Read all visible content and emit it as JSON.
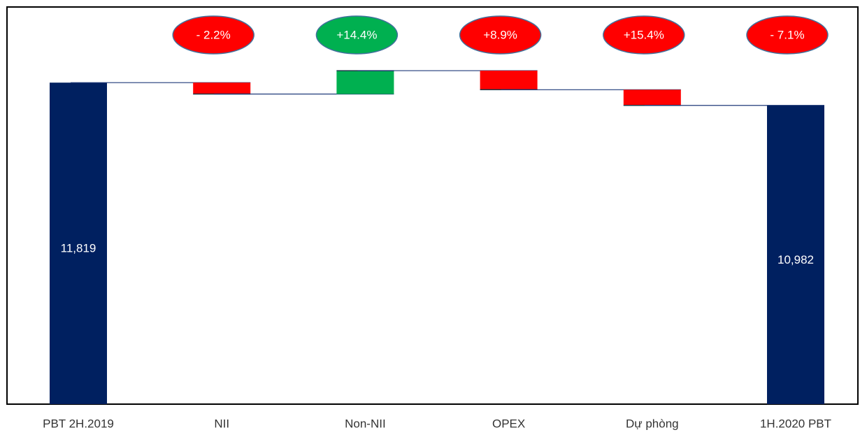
{
  "chart_data": {
    "type": "waterfall",
    "categories": [
      "PBT 2H.2019",
      "NII",
      "Non-NII",
      "OPEX",
      "Dự phòng",
      "1H.2020 PBT"
    ],
    "measure": [
      "absolute",
      "relative",
      "relative",
      "relative",
      "relative",
      "absolute"
    ],
    "values": [
      11819,
      -420,
      860,
      -700,
      -577,
      10982
    ],
    "value_labels": [
      "11,819",
      null,
      null,
      null,
      null,
      "10,982"
    ],
    "colors": [
      "#002060",
      "#ff0000",
      "#00b050",
      "#ff0000",
      "#ff0000",
      "#002060"
    ],
    "change_labels": [
      null,
      "- 2.2%",
      "+14.4%",
      "+8.9%",
      "+15.4%",
      "- 7.1%"
    ],
    "change_colors": [
      null,
      "#ff0000",
      "#00b050",
      "#ff0000",
      "#ff0000",
      "#ff0000"
    ],
    "ylim": [
      0,
      14600
    ]
  }
}
